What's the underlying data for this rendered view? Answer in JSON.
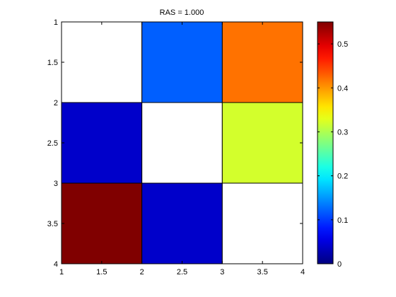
{
  "chart_data": {
    "type": "heatmap",
    "title": "RAS = 1.000",
    "xlabel": "",
    "ylabel": "",
    "x_edges": [
      1,
      2,
      3,
      4
    ],
    "y_edges": [
      1,
      2,
      3,
      4
    ],
    "xlim": [
      1,
      4
    ],
    "ylim": [
      1,
      4
    ],
    "y_direction": "reverse",
    "x_ticks": [
      "1",
      "1.5",
      "2",
      "2.5",
      "3",
      "3.5",
      "4"
    ],
    "y_ticks": [
      "1",
      "1.5",
      "2",
      "2.5",
      "3",
      "3.5",
      "4"
    ],
    "cells": [
      [
        null,
        0.12,
        0.42
      ],
      [
        0.04,
        null,
        0.32
      ],
      [
        0.55,
        0.04,
        null
      ]
    ],
    "empty_cell_color": "#ffffff",
    "colormap": "jet",
    "colorbar": {
      "placement": "right",
      "range": [
        0,
        0.55
      ],
      "ticks": [
        "0",
        "0.1",
        "0.2",
        "0.3",
        "0.4",
        "0.5"
      ]
    },
    "grid": false
  }
}
